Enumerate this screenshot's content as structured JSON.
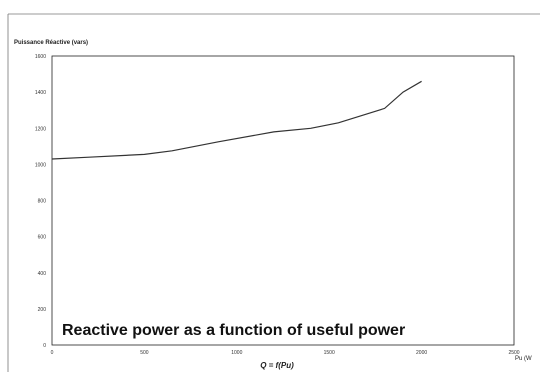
{
  "chart_data": {
    "type": "line",
    "title": "",
    "ylabel": "Puissance Réactive (vars)",
    "xlabel": "Pu (W",
    "formula": "Q = f(Pu)",
    "caption": "Reactive power as a function of useful power",
    "xlim": [
      0,
      2500
    ],
    "ylim": [
      0,
      1600
    ],
    "xticks": [
      0,
      500,
      1000,
      1500,
      2000,
      2500
    ],
    "yticks": [
      0,
      200,
      400,
      600,
      800,
      1000,
      1200,
      1400,
      1600
    ],
    "grid": false,
    "colors": {
      "line": "#333333",
      "axis": "#222222",
      "frame": "#777777"
    },
    "series": [
      {
        "x": [
          0,
          200,
          500,
          650,
          900,
          1200,
          1400,
          1550,
          1800,
          1900,
          2000
        ],
        "y": [
          1030,
          1040,
          1055,
          1075,
          1125,
          1180,
          1200,
          1230,
          1310,
          1400,
          1460
        ]
      }
    ]
  }
}
